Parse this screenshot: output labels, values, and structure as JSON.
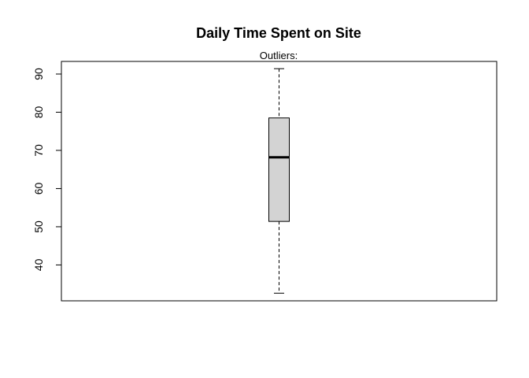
{
  "chart_data": {
    "type": "boxplot",
    "title": "Daily Time Spent on Site",
    "subtitle": "Outliers:",
    "xlabel": "",
    "ylabel": "",
    "ylim": [
      30.6,
      93.3
    ],
    "yticks": [
      40,
      50,
      60,
      70,
      80,
      90
    ],
    "grid": false,
    "box": {
      "min": 32.6,
      "q1": 51.4,
      "median": 68.2,
      "q3": 78.5,
      "max": 91.4,
      "fill": "#d3d3d3"
    }
  }
}
